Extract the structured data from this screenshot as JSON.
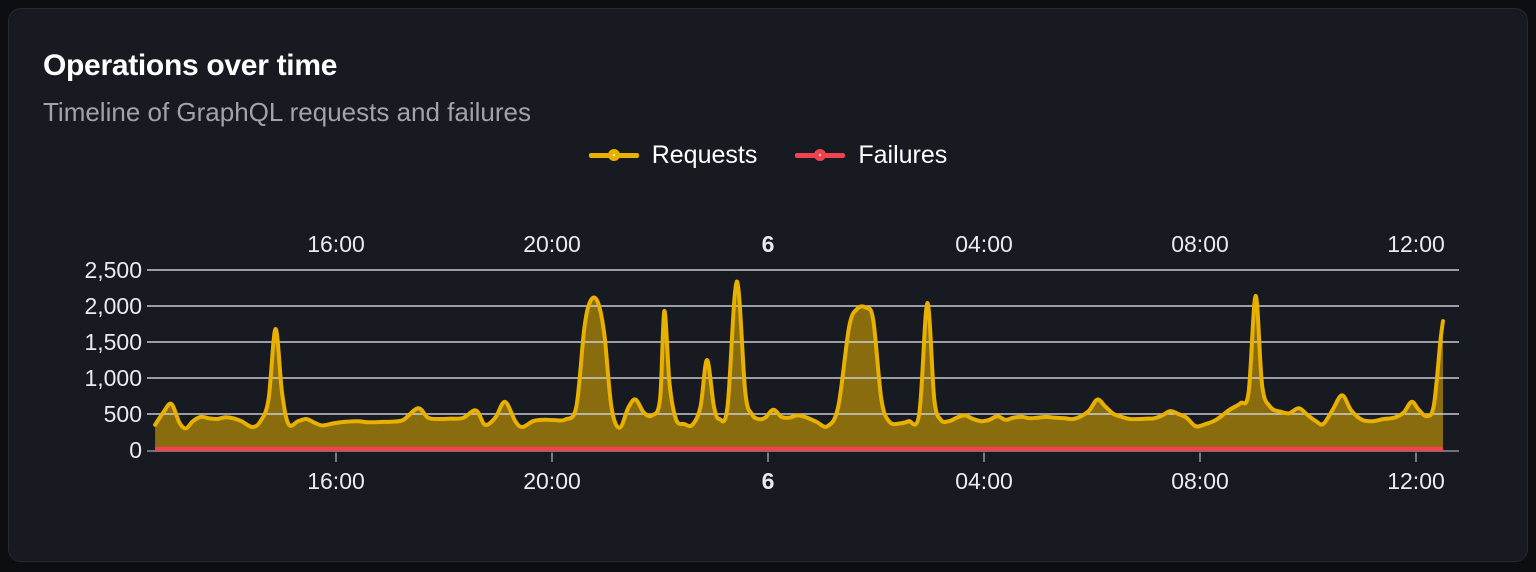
{
  "panel": {
    "title": "Operations over time",
    "subtitle": "Timeline of GraphQL requests and failures"
  },
  "legend": {
    "items": [
      {
        "label": "Requests",
        "color": "#e8b000"
      },
      {
        "label": "Failures",
        "color": "#ef4350"
      }
    ]
  },
  "colors": {
    "page_background": "#0d0e11",
    "panel_background": "#171a20",
    "requests_line": "#e8b000",
    "failures_line": "#ef4350",
    "gridline": "#d8dce6",
    "axis_text": "#e9ebef",
    "axis_line": "#6e737b",
    "title_text": "#ffffff",
    "subtitle_text": "#9fa4ab"
  },
  "chart_data": {
    "type": "area",
    "title": "Operations over time",
    "subtitle": "Timeline of GraphQL requests and failures",
    "grid": true,
    "legend_position": "top-center",
    "x_axis": {
      "unit": "time-of-day",
      "labels_top": true,
      "labels_bottom": true,
      "range_hours": [
        12.65,
        36.5
      ],
      "ticks": [
        {
          "hour": 16,
          "label": "16:00",
          "bold": false
        },
        {
          "hour": 20,
          "label": "20:00",
          "bold": false
        },
        {
          "hour": 24,
          "label": "6",
          "bold": true
        },
        {
          "hour": 28,
          "label": "04:00",
          "bold": false
        },
        {
          "hour": 32,
          "label": "08:00",
          "bold": false
        },
        {
          "hour": 36,
          "label": "12:00",
          "bold": false
        }
      ]
    },
    "y_axis": {
      "range": [
        0,
        2500
      ],
      "ticks": [
        {
          "value": 0,
          "label": "0"
        },
        {
          "value": 500,
          "label": "500"
        },
        {
          "value": 1000,
          "label": "1,000"
        },
        {
          "value": 1500,
          "label": "1,500"
        },
        {
          "value": 2000,
          "label": "2,000"
        },
        {
          "value": 2500,
          "label": "2,500"
        }
      ]
    },
    "series": [
      {
        "name": "Requests",
        "color": "#e8b000",
        "fill_opacity": 0.55,
        "points": [
          [
            12.65,
            350
          ],
          [
            12.8,
            520
          ],
          [
            12.95,
            640
          ],
          [
            13.1,
            380
          ],
          [
            13.22,
            300
          ],
          [
            13.35,
            400
          ],
          [
            13.5,
            460
          ],
          [
            13.65,
            440
          ],
          [
            13.8,
            430
          ],
          [
            13.95,
            455
          ],
          [
            14.1,
            440
          ],
          [
            14.25,
            400
          ],
          [
            14.45,
            320
          ],
          [
            14.6,
            400
          ],
          [
            14.75,
            700
          ],
          [
            14.88,
            1680
          ],
          [
            15.0,
            800
          ],
          [
            15.12,
            360
          ],
          [
            15.3,
            400
          ],
          [
            15.45,
            430
          ],
          [
            15.6,
            380
          ],
          [
            15.75,
            340
          ],
          [
            15.95,
            370
          ],
          [
            16.15,
            390
          ],
          [
            16.4,
            400
          ],
          [
            16.6,
            385
          ],
          [
            16.85,
            390
          ],
          [
            17.05,
            395
          ],
          [
            17.25,
            420
          ],
          [
            17.52,
            580
          ],
          [
            17.7,
            450
          ],
          [
            17.9,
            430
          ],
          [
            18.1,
            435
          ],
          [
            18.35,
            445
          ],
          [
            18.59,
            550
          ],
          [
            18.76,
            350
          ],
          [
            18.95,
            450
          ],
          [
            19.13,
            670
          ],
          [
            19.32,
            400
          ],
          [
            19.45,
            320
          ],
          [
            19.65,
            400
          ],
          [
            19.85,
            420
          ],
          [
            20.05,
            415
          ],
          [
            20.25,
            425
          ],
          [
            20.45,
            600
          ],
          [
            20.6,
            1700
          ],
          [
            20.72,
            2080
          ],
          [
            20.85,
            2050
          ],
          [
            20.97,
            1600
          ],
          [
            21.1,
            600
          ],
          [
            21.25,
            310
          ],
          [
            21.42,
            600
          ],
          [
            21.55,
            700
          ],
          [
            21.7,
            520
          ],
          [
            21.85,
            480
          ],
          [
            22.0,
            700
          ],
          [
            22.08,
            1930
          ],
          [
            22.18,
            900
          ],
          [
            22.3,
            420
          ],
          [
            22.45,
            360
          ],
          [
            22.6,
            350
          ],
          [
            22.75,
            600
          ],
          [
            22.87,
            1250
          ],
          [
            23.0,
            600
          ],
          [
            23.1,
            430
          ],
          [
            23.25,
            600
          ],
          [
            23.42,
            2340
          ],
          [
            23.58,
            800
          ],
          [
            23.7,
            500
          ],
          [
            23.82,
            430
          ],
          [
            23.95,
            450
          ],
          [
            24.1,
            560
          ],
          [
            24.25,
            460
          ],
          [
            24.4,
            450
          ],
          [
            24.55,
            480
          ],
          [
            24.72,
            450
          ],
          [
            24.9,
            390
          ],
          [
            25.1,
            330
          ],
          [
            25.3,
            600
          ],
          [
            25.5,
            1700
          ],
          [
            25.65,
            1960
          ],
          [
            25.82,
            1975
          ],
          [
            25.95,
            1800
          ],
          [
            26.1,
            700
          ],
          [
            26.25,
            390
          ],
          [
            26.45,
            370
          ],
          [
            26.6,
            400
          ],
          [
            26.8,
            500
          ],
          [
            26.95,
            2040
          ],
          [
            27.08,
            700
          ],
          [
            27.2,
            420
          ],
          [
            27.35,
            400
          ],
          [
            27.5,
            450
          ],
          [
            27.65,
            480
          ],
          [
            27.8,
            430
          ],
          [
            27.95,
            400
          ],
          [
            28.1,
            420
          ],
          [
            28.25,
            470
          ],
          [
            28.4,
            420
          ],
          [
            28.55,
            450
          ],
          [
            28.7,
            460
          ],
          [
            28.85,
            440
          ],
          [
            29.0,
            450
          ],
          [
            29.15,
            460
          ],
          [
            29.3,
            450
          ],
          [
            29.5,
            440
          ],
          [
            29.65,
            430
          ],
          [
            29.8,
            470
          ],
          [
            29.95,
            550
          ],
          [
            30.1,
            700
          ],
          [
            30.25,
            600
          ],
          [
            30.4,
            500
          ],
          [
            30.55,
            460
          ],
          [
            30.7,
            430
          ],
          [
            30.85,
            430
          ],
          [
            31.0,
            435
          ],
          [
            31.15,
            440
          ],
          [
            31.3,
            480
          ],
          [
            31.45,
            540
          ],
          [
            31.6,
            500
          ],
          [
            31.75,
            450
          ],
          [
            31.92,
            330
          ],
          [
            32.1,
            360
          ],
          [
            32.3,
            420
          ],
          [
            32.55,
            560
          ],
          [
            32.75,
            650
          ],
          [
            32.9,
            800
          ],
          [
            33.03,
            2140
          ],
          [
            33.15,
            900
          ],
          [
            33.3,
            600
          ],
          [
            33.5,
            530
          ],
          [
            33.65,
            510
          ],
          [
            33.83,
            580
          ],
          [
            34.0,
            480
          ],
          [
            34.15,
            400
          ],
          [
            34.28,
            360
          ],
          [
            34.45,
            550
          ],
          [
            34.63,
            760
          ],
          [
            34.8,
            550
          ],
          [
            35.0,
            420
          ],
          [
            35.2,
            400
          ],
          [
            35.4,
            430
          ],
          [
            35.6,
            450
          ],
          [
            35.77,
            520
          ],
          [
            35.92,
            670
          ],
          [
            36.05,
            560
          ],
          [
            36.2,
            470
          ],
          [
            36.33,
            620
          ],
          [
            36.45,
            1500
          ],
          [
            36.5,
            1790
          ]
        ]
      },
      {
        "name": "Failures",
        "color": "#ef4350",
        "points": [
          [
            12.65,
            0
          ],
          [
            36.5,
            0
          ]
        ]
      }
    ]
  }
}
